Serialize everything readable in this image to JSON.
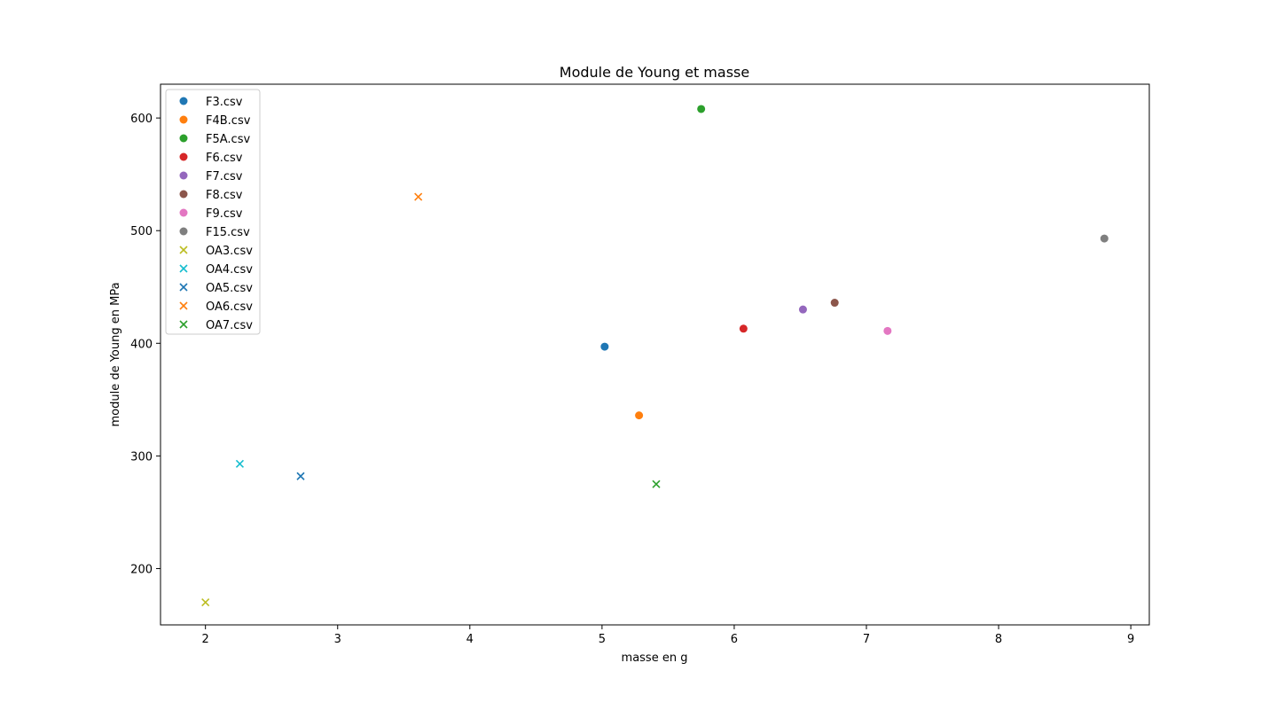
{
  "chart_data": {
    "type": "scatter",
    "title": "Module de Young et masse",
    "xlabel": "masse en g",
    "ylabel": "module de Young en  MPa",
    "xlim": [
      1.66,
      9.14
    ],
    "ylim": [
      150,
      630
    ],
    "xticks": [
      2,
      3,
      4,
      5,
      6,
      7,
      8,
      9
    ],
    "yticks": [
      200,
      300,
      400,
      500,
      600
    ],
    "grid": false,
    "legend_position": "upper-left",
    "series": [
      {
        "name": "F3.csv",
        "marker": "o",
        "color": "#1f77b4",
        "x": 5.02,
        "y": 397
      },
      {
        "name": "F4B.csv",
        "marker": "o",
        "color": "#ff7f0e",
        "x": 5.28,
        "y": 336
      },
      {
        "name": "F5A.csv",
        "marker": "o",
        "color": "#2ca02c",
        "x": 5.75,
        "y": 608
      },
      {
        "name": "F6.csv",
        "marker": "o",
        "color": "#d62728",
        "x": 6.07,
        "y": 413
      },
      {
        "name": "F7.csv",
        "marker": "o",
        "color": "#9467bd",
        "x": 6.52,
        "y": 430
      },
      {
        "name": "F8.csv",
        "marker": "o",
        "color": "#8c564b",
        "x": 6.76,
        "y": 436
      },
      {
        "name": "F9.csv",
        "marker": "o",
        "color": "#e377c2",
        "x": 7.16,
        "y": 411
      },
      {
        "name": "F15.csv",
        "marker": "o",
        "color": "#7f7f7f",
        "x": 8.8,
        "y": 493
      },
      {
        "name": "OA3.csv",
        "marker": "x",
        "color": "#bcbd22",
        "x": 2.0,
        "y": 170
      },
      {
        "name": "OA4.csv",
        "marker": "x",
        "color": "#17becf",
        "x": 2.26,
        "y": 293
      },
      {
        "name": "OA5.csv",
        "marker": "x",
        "color": "#1f77b4",
        "x": 2.72,
        "y": 282
      },
      {
        "name": "OA6.csv",
        "marker": "x",
        "color": "#ff7f0e",
        "x": 3.61,
        "y": 530
      },
      {
        "name": "OA7.csv",
        "marker": "x",
        "color": "#2ca02c",
        "x": 5.41,
        "y": 275
      }
    ]
  }
}
